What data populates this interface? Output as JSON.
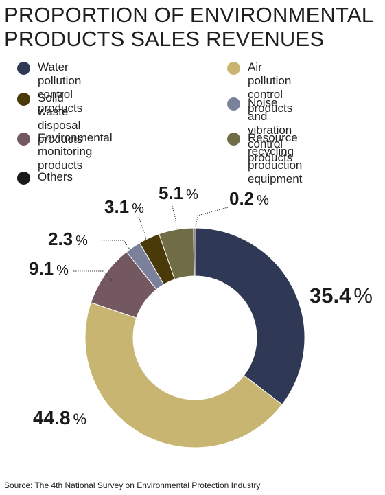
{
  "title_line1": "PROPORTION OF ENVIRONMENTAL",
  "title_line2": "PRODUCTS SALES REVENUES",
  "source": "Source: The 4th National Survey on Environmental Protection Industry",
  "chart_data": {
    "type": "pie",
    "variant": "donut",
    "title": "PROPORTION OF ENVIRONMENTAL PRODUCTS SALES REVENUES",
    "legend_position": "top",
    "unit": "%",
    "slices": [
      {
        "name": "Water pollution control products",
        "legend_lines": [
          "Water pollution control",
          "products"
        ],
        "value": 35.4,
        "label": "35.4",
        "color": "#2f3854"
      },
      {
        "name": "Air pollution control products",
        "legend_lines": [
          "Air pollution control",
          "products"
        ],
        "value": 44.8,
        "label": "44.8",
        "color": "#c9b572"
      },
      {
        "name": "Environmental monitoring products",
        "legend_lines": [
          "Environmental monitoring",
          "products"
        ],
        "value": 9.1,
        "label": "9.1",
        "color": "#735862"
      },
      {
        "name": "Noise and vibration control products",
        "legend_lines": [
          "Noise and vibration",
          "control products"
        ],
        "value": 2.3,
        "label": "2.3",
        "color": "#7b809b"
      },
      {
        "name": "Solid waste disposal products",
        "legend_lines": [
          "Solid waste disposal",
          "products"
        ],
        "value": 3.1,
        "label": "3.1",
        "color": "#4a3a0a"
      },
      {
        "name": "Resource recycling production equipment",
        "legend_lines": [
          "Resource recycling",
          "production equipment"
        ],
        "value": 5.1,
        "label": "5.1",
        "color": "#6f6c46"
      },
      {
        "name": "Others",
        "legend_lines": [
          "Others"
        ],
        "value": 0.2,
        "label": "0.2",
        "color": "#1a1a1a"
      }
    ],
    "legend_order": [
      0,
      1,
      4,
      3,
      2,
      5,
      6
    ]
  }
}
